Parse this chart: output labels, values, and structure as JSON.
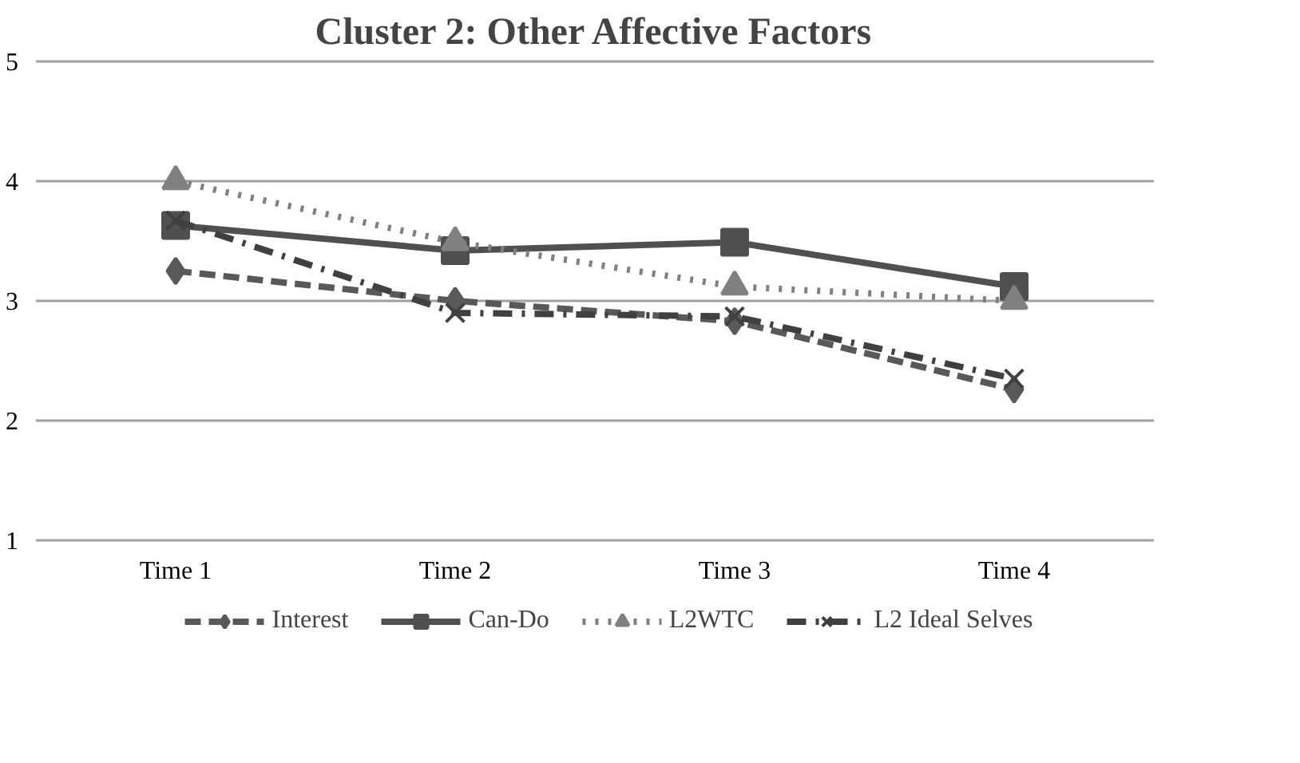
{
  "chart_data": {
    "type": "line",
    "title": "Cluster 2: Other Affective Factors",
    "categories": [
      "Time 1",
      "Time 2",
      "Time 3",
      "Time 4"
    ],
    "series": [
      {
        "name": "Interest",
        "color": "#595959",
        "values": [
          3.25,
          3.0,
          2.83,
          2.26
        ],
        "marker": "diamond",
        "line_style": "dashed"
      },
      {
        "name": "Can-Do",
        "color": "#505050",
        "values": [
          3.63,
          3.42,
          3.49,
          3.12
        ],
        "marker": "square",
        "line_style": "solid"
      },
      {
        "name": "L2WTC",
        "color": "#808080",
        "values": [
          4.0,
          3.49,
          3.12,
          3.0
        ],
        "marker": "triangle",
        "line_style": "dotted"
      },
      {
        "name": "L2 Ideal Selves",
        "color": "#404040",
        "values": [
          3.67,
          2.9,
          2.87,
          2.35
        ],
        "marker": "cross",
        "line_style": "dashdot"
      }
    ],
    "ylim": [
      1,
      5
    ],
    "yticks": [
      1,
      2,
      3,
      4,
      5
    ],
    "grid": "y",
    "legend": "bottom"
  }
}
